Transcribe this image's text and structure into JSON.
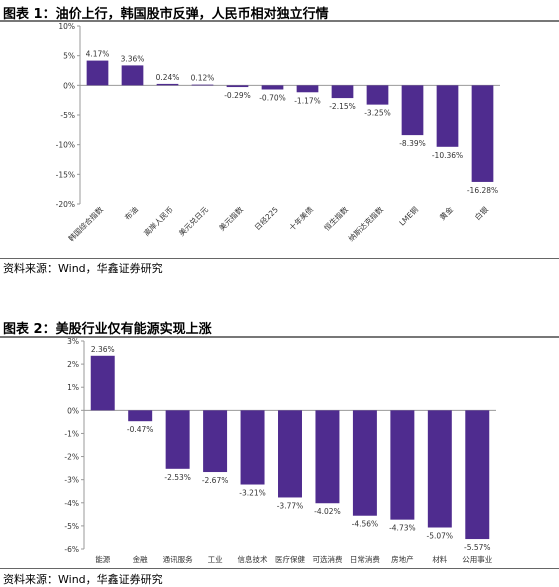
{
  "chart_data": [
    {
      "type": "bar",
      "title": "图表 1：油价上行，韩国股市反弹，人民币相对独立行情",
      "categories": [
        "韩国综合指数",
        "布油",
        "离岸人民币",
        "美元兑日元",
        "美元指数",
        "日经225",
        "十年美债",
        "恒生指数",
        "纳斯达克指数",
        "LME铜",
        "黄金",
        "白银"
      ],
      "values": [
        4.17,
        3.36,
        0.24,
        0.12,
        -0.29,
        -0.7,
        -1.17,
        -2.15,
        -3.25,
        -8.39,
        -10.36,
        -16.28
      ],
      "value_labels": [
        "4.17%",
        "3.36%",
        "0.24%",
        "0.12%",
        "-0.29%",
        "-0.70%",
        "-1.17%",
        "-2.15%",
        "-3.25%",
        "-8.39%",
        "-10.36%",
        "-16.28%"
      ],
      "yticks": [
        "10%",
        "5%",
        "0%",
        "-5%",
        "-10%",
        "-15%",
        "-20%"
      ],
      "ylim": [
        -20,
        10
      ],
      "grid": false,
      "color": "#4F2C8F",
      "source": "资料来源：Wind，华鑫证券研究"
    },
    {
      "type": "bar",
      "title": "图表 2：美股行业仅有能源实现上涨",
      "categories": [
        "能源",
        "金融",
        "通讯服务",
        "工业",
        "信息技术",
        "医疗保健",
        "可选消费",
        "日常消费",
        "房地产",
        "材料",
        "公用事业"
      ],
      "values": [
        2.36,
        -0.47,
        -2.53,
        -2.67,
        -3.21,
        -3.77,
        -4.02,
        -4.56,
        -4.73,
        -5.07,
        -5.57
      ],
      "value_labels": [
        "2.36%",
        "-0.47%",
        "-2.53%",
        "-2.67%",
        "-3.21%",
        "-3.77%",
        "-4.02%",
        "-4.56%",
        "-4.73%",
        "-5.07%",
        "-5.57%"
      ],
      "yticks": [
        "3%",
        "2%",
        "1%",
        "0%",
        "-1%",
        "-2%",
        "-3%",
        "-4%",
        "-5%",
        "-6%"
      ],
      "ylim": [
        -6,
        3
      ],
      "grid": false,
      "color": "#4F2C8F",
      "source": "资料来源：Wind，华鑫证券研究"
    }
  ]
}
